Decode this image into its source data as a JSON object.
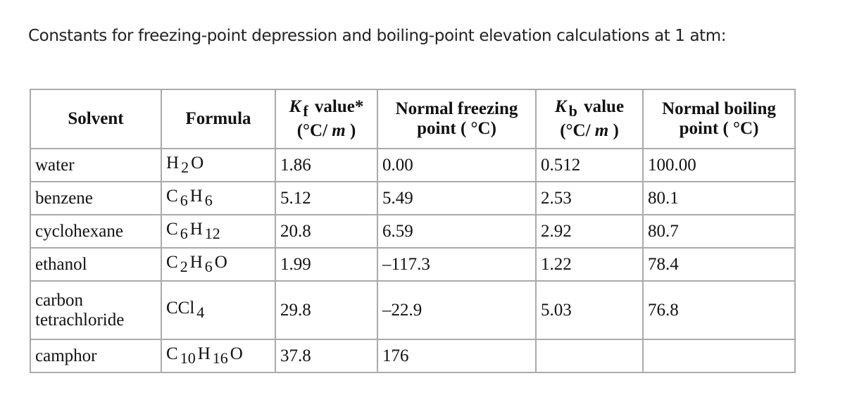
{
  "title": "Constants for freezing-point depression and boiling-point elevation calculations at 1 atm:",
  "headers": {
    "solvent": "Solvent",
    "formula": "Formula",
    "kf_sym": "K",
    "kf_sub": "f",
    "kf_rest": " value*",
    "kf_unit_a": "(°C/ ",
    "m": "m",
    "unit_b": " )",
    "nfp_a": "Normal freezing",
    "nfp_b": "point ( °C)",
    "kb_sym": "K",
    "kb_sub": "b",
    "kb_rest": " value",
    "kb_unit_a": "(°C/ ",
    "nbp_a": "Normal boiling",
    "nbp_b": "point ( °C)"
  },
  "rows": [
    {
      "solvent": "water",
      "formula": [
        [
          "H",
          "2"
        ],
        [
          "O",
          ""
        ]
      ],
      "kf": "1.86",
      "nfp": "0.00",
      "kb": "0.512",
      "nbp": "100.00"
    },
    {
      "solvent": "benzene",
      "formula": [
        [
          "C",
          "6"
        ],
        [
          "H",
          "6"
        ]
      ],
      "kf": "5.12",
      "nfp": "5.49",
      "kb": "2.53",
      "nbp": "80.1"
    },
    {
      "solvent": "cyclohexane",
      "formula": [
        [
          "C",
          "6"
        ],
        [
          "H",
          "12"
        ]
      ],
      "kf": "20.8",
      "nfp": "6.59",
      "kb": "2.92",
      "nbp": "80.7"
    },
    {
      "solvent": "ethanol",
      "formula": [
        [
          "C",
          "2"
        ],
        [
          "H",
          "6"
        ],
        [
          "O",
          ""
        ]
      ],
      "kf": "1.99",
      "nfp": "–117.3",
      "kb": "1.22",
      "nbp": "78.4"
    },
    {
      "solvent": "carbon tetrachloride",
      "formula": [
        [
          "CCl",
          "4"
        ]
      ],
      "kf": "29.8",
      "nfp": "–22.9",
      "kb": "5.03",
      "nbp": "76.8"
    },
    {
      "solvent": "camphor",
      "formula": [
        [
          "C",
          "10"
        ],
        [
          "H",
          "16"
        ],
        [
          "O",
          ""
        ]
      ],
      "kf": "37.8",
      "nfp": "176",
      "kb": "",
      "nbp": ""
    }
  ]
}
